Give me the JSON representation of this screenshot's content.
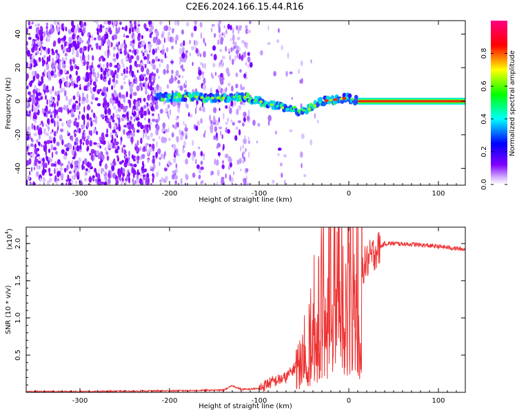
{
  "title": "C2E6.2024.166.15.44.R16",
  "chart_data": [
    {
      "type": "heatmap",
      "xlabel": "Height of straight line (km)",
      "ylabel": "Frequency (Hz)",
      "xlim": [
        -360,
        130
      ],
      "ylim": [
        -50,
        48
      ],
      "xticks": [
        -300,
        -200,
        -100,
        0,
        100
      ],
      "yticks": [
        -40,
        -20,
        0,
        20,
        40
      ],
      "colorbar": {
        "label": "Normalized spectral amplitude",
        "range": [
          0.0,
          1.0
        ],
        "ticks": [
          0.0,
          0.2,
          0.4,
          0.6,
          0.8
        ],
        "colormap": [
          "#ffffff",
          "#8000ff",
          "#0000ff",
          "#00ffff",
          "#00ff00",
          "#ffff00",
          "#ff0000",
          "#ff00ff"
        ]
      },
      "description_values": {
        "noise_region_x": [
          -360,
          -215
        ],
        "sparse_noise_x": [
          -215,
          -110
        ],
        "signal_trace": {
          "x": [
            -215,
            -200,
            -180,
            -160,
            -140,
            -120,
            -100,
            -80,
            -60,
            -45,
            -30,
            -15,
            0,
            10,
            130
          ],
          "y": [
            3,
            2,
            3,
            2,
            2,
            3,
            0,
            -3,
            -6,
            -5,
            0,
            1,
            2,
            0,
            0
          ]
        },
        "steady_line_x": [
          10,
          130
        ],
        "steady_line_y": 0
      }
    },
    {
      "type": "line",
      "xlabel": "Height of straight line (km)",
      "ylabel": "SNR (10 * v/v)",
      "yscale_label": "(x10",
      "yscale_exp": "4",
      "yscale_close": ")",
      "xlim": [
        -360,
        130
      ],
      "ylim": [
        0,
        2.22
      ],
      "xticks": [
        -300,
        -200,
        -100,
        0,
        100
      ],
      "yticks": [
        0.5,
        1.0,
        1.5,
        2.0
      ],
      "ytick_labels": [
        "0.5",
        "1.0",
        "1.5",
        "2.0"
      ],
      "color": "#ee3333",
      "series": [
        {
          "x": [
            -360,
            -300,
            -200,
            -140,
            -130,
            -120,
            -100,
            -90,
            -70,
            -55,
            -45,
            -38,
            -30,
            -25,
            -20,
            -15,
            -10,
            -5,
            0,
            5,
            10,
            20,
            30,
            40,
            50,
            70,
            100,
            130
          ],
          "y": [
            0.01,
            0.01,
            0.02,
            0.03,
            0.09,
            0.04,
            0.05,
            0.12,
            0.2,
            0.4,
            0.8,
            1.0,
            1.2,
            1.5,
            1.8,
            1.5,
            1.6,
            1.75,
            1.85,
            1.95,
            1.6,
            1.75,
            1.9,
            2.0,
            2.0,
            1.99,
            1.96,
            1.92
          ]
        }
      ]
    }
  ]
}
